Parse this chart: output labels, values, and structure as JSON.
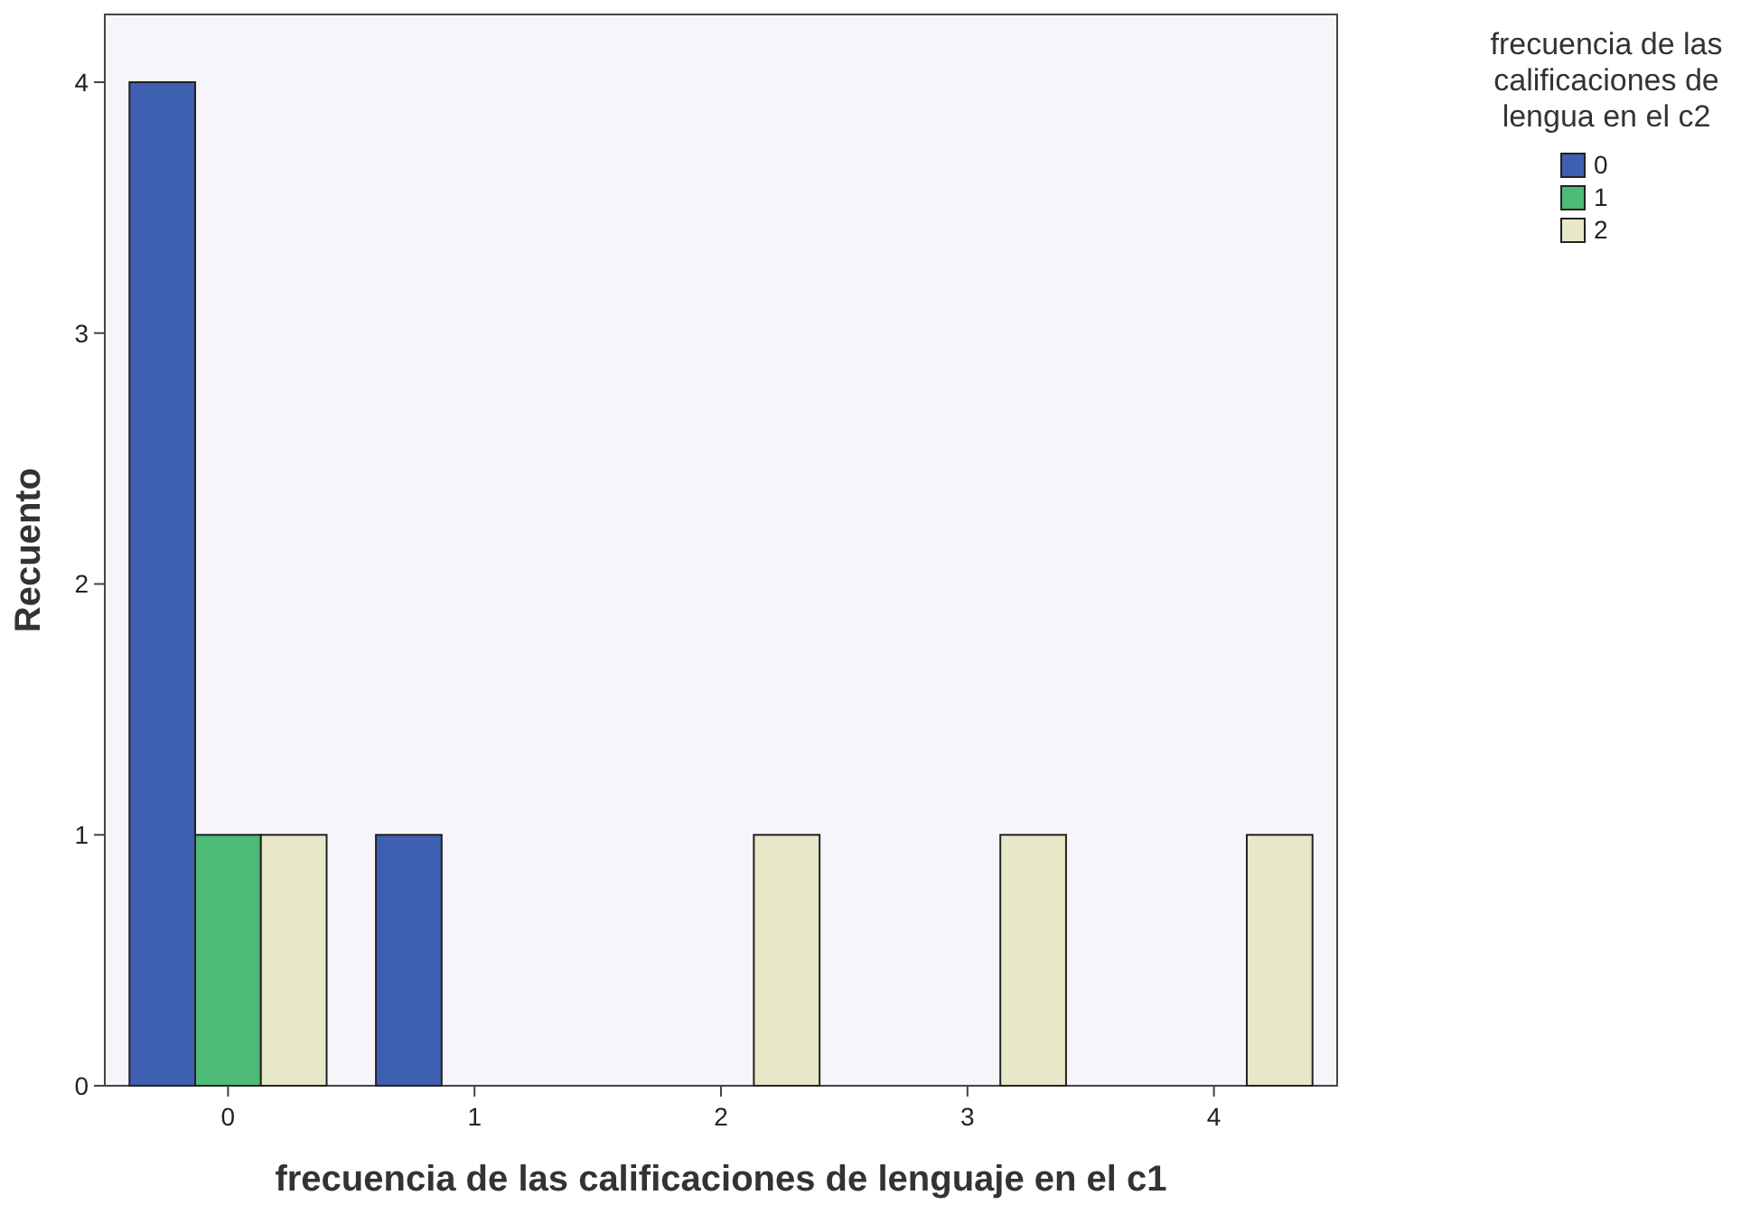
{
  "chart_data": {
    "type": "bar",
    "xlabel": "frecuencia de las calificaciones de lenguaje en el c1",
    "ylabel": "Recuento",
    "legend_title": "frecuencia de las calificaciones de lengua en el c2",
    "categories": [
      "0",
      "1",
      "2",
      "3",
      "4"
    ],
    "series": [
      {
        "name": "0",
        "color": "#3f5fb3",
        "values": [
          4,
          1,
          null,
          null,
          null
        ]
      },
      {
        "name": "1",
        "color": "#4dba76",
        "values": [
          1,
          null,
          null,
          null,
          null
        ]
      },
      {
        "name": "2",
        "color": "#e8e8c8",
        "values": [
          1,
          null,
          1,
          1,
          1
        ]
      }
    ],
    "ylim": [
      0,
      4.27
    ],
    "yticks": [
      0,
      1,
      2,
      3,
      4
    ],
    "grid": false,
    "legend": "top right"
  }
}
